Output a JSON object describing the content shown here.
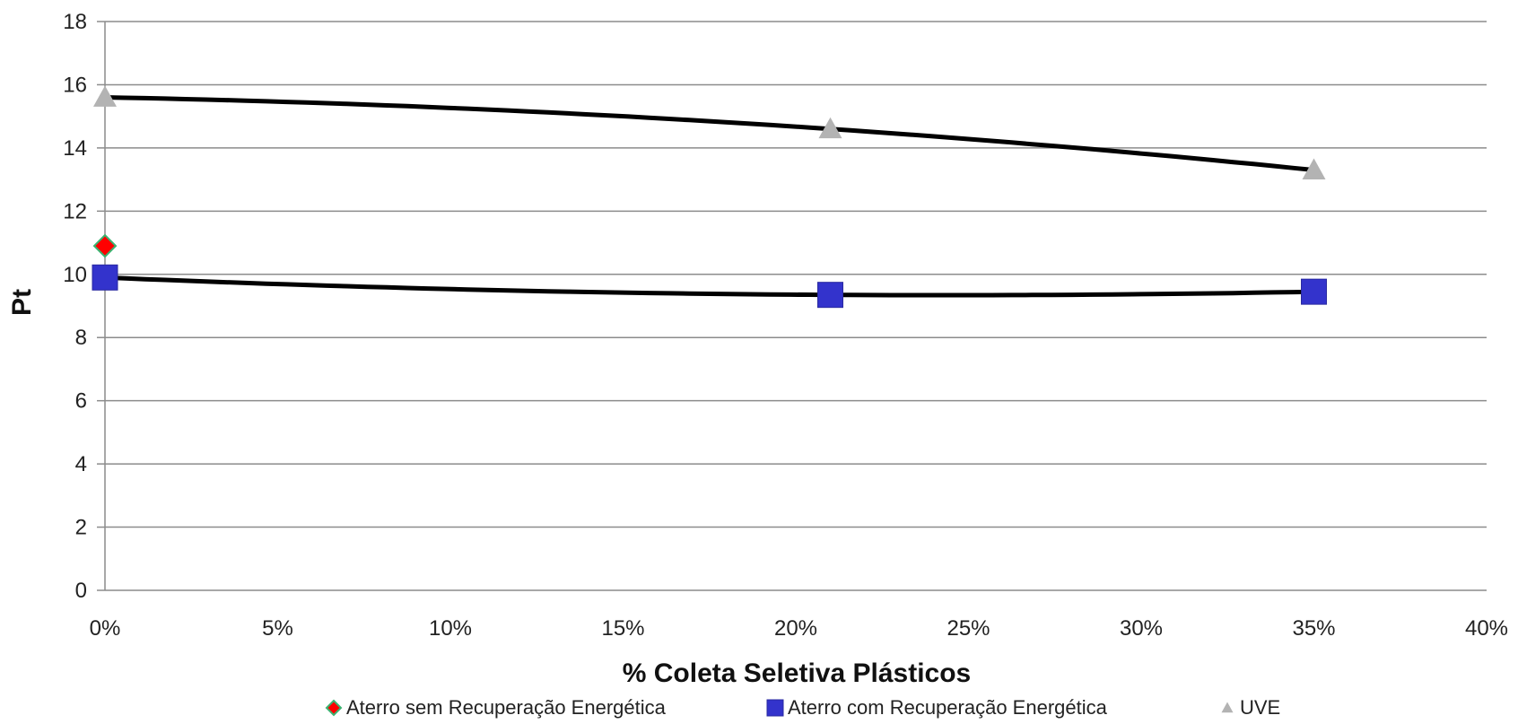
{
  "chart_data": {
    "type": "scatter",
    "xlabel": "% Coleta Seletiva Plásticos",
    "ylabel": "Pt",
    "xlim": [
      0,
      0.4
    ],
    "ylim": [
      0,
      18
    ],
    "xticks": [
      {
        "value": 0,
        "label": "0%"
      },
      {
        "value": 0.05,
        "label": "5%"
      },
      {
        "value": 0.1,
        "label": "10%"
      },
      {
        "value": 0.15,
        "label": "15%"
      },
      {
        "value": 0.2,
        "label": "20%"
      },
      {
        "value": 0.25,
        "label": "25%"
      },
      {
        "value": 0.3,
        "label": "30%"
      },
      {
        "value": 0.35,
        "label": "35%"
      },
      {
        "value": 0.4,
        "label": "40%"
      }
    ],
    "yticks": [
      {
        "value": 0,
        "label": "0"
      },
      {
        "value": 2,
        "label": "2"
      },
      {
        "value": 4,
        "label": "4"
      },
      {
        "value": 6,
        "label": "6"
      },
      {
        "value": 8,
        "label": "8"
      },
      {
        "value": 10,
        "label": "10"
      },
      {
        "value": 12,
        "label": "12"
      },
      {
        "value": 14,
        "label": "14"
      },
      {
        "value": 16,
        "label": "16"
      },
      {
        "value": 18,
        "label": "18"
      }
    ],
    "grid": "horizontal",
    "legend_position": "bottom",
    "series": [
      {
        "name": "Aterro sem Recuperação Energética",
        "marker": "diamond",
        "color": "#ff0000",
        "edge_color": "#3cb371",
        "points": [
          {
            "x": 0,
            "y": 10.9
          }
        ],
        "trendline": false
      },
      {
        "name": "Aterro com Recuperação Energética",
        "marker": "square",
        "color": "#3333cc",
        "points": [
          {
            "x": 0,
            "y": 9.9
          },
          {
            "x": 0.21,
            "y": 9.35
          },
          {
            "x": 0.35,
            "y": 9.45
          }
        ],
        "trendline": true
      },
      {
        "name": "UVE",
        "marker": "triangle",
        "color": "#b3b3b3",
        "points": [
          {
            "x": 0,
            "y": 15.6
          },
          {
            "x": 0.21,
            "y": 14.6
          },
          {
            "x": 0.35,
            "y": 13.3
          }
        ],
        "trendline": true
      }
    ],
    "trendline_color": "#000000"
  }
}
